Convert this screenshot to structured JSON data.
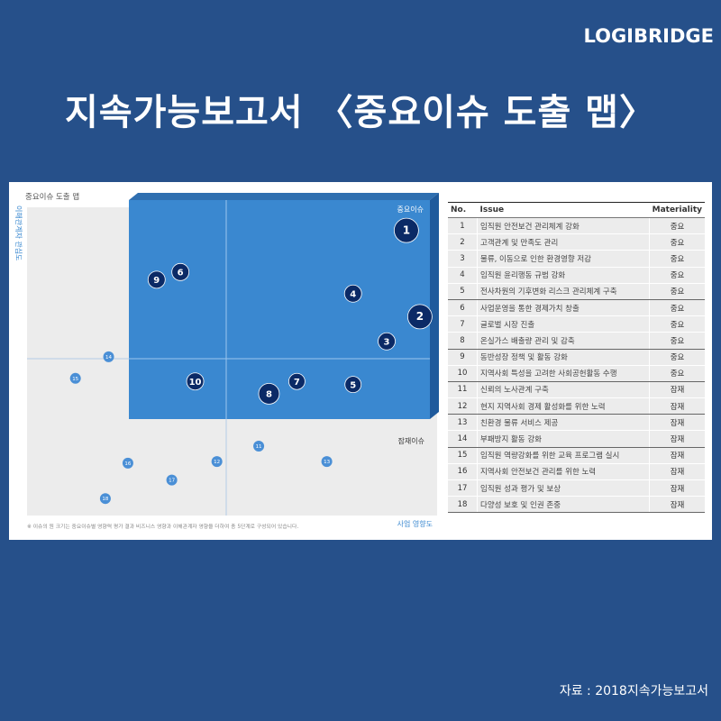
{
  "header": {
    "logo": "LOGIBRIDGE",
    "title": "지속가능보고서 〈중요이슈 도출 맵〉"
  },
  "footer": {
    "source": "자료 : 2018지속가능보고서"
  },
  "colors": {
    "background": "#26508a",
    "quadrant": "#3a88d0",
    "bubble": "#0b2a66",
    "small_bubble": "#4a8fd6"
  },
  "map": {
    "heading": "중요이슈 도출 맵",
    "y_axis_label": "이해관계자 관심도",
    "x_axis_label": "사업 영향도",
    "quadrant_label_major": "중요이슈",
    "quadrant_label_minor": "잠재이슈",
    "footnote": "※ 이슈의 원 크기는 중요이슈별 영향력 평가 결과 비즈니스 영향과 이해관계자 영향을 더하여 총 5단계로 구성되어 있습니다."
  },
  "table": {
    "headers": {
      "no": "No.",
      "issue": "Issue",
      "materiality": "Materiality"
    },
    "rows": [
      {
        "no": "1",
        "issue": "임직원 안전보건 관리체계 강화",
        "materiality": "중요"
      },
      {
        "no": "2",
        "issue": "고객관계 및 만족도 관리",
        "materiality": "중요"
      },
      {
        "no": "3",
        "issue": "물류, 이동으로 인한 환경영향 저감",
        "materiality": "중요"
      },
      {
        "no": "4",
        "issue": "임직원 윤리행동 규범 강화",
        "materiality": "중요"
      },
      {
        "no": "5",
        "issue": "전사차원의 기후변화 리스크 관리체계 구축",
        "materiality": "중요"
      },
      {
        "no": "6",
        "issue": "사업운영을 통한 경제가치 창출",
        "materiality": "중요"
      },
      {
        "no": "7",
        "issue": "글로벌 시장 진출",
        "materiality": "중요"
      },
      {
        "no": "8",
        "issue": "온실가스 배출량 관리 및 감축",
        "materiality": "중요"
      },
      {
        "no": "9",
        "issue": "동반성장 정책 및 활동 강화",
        "materiality": "중요"
      },
      {
        "no": "10",
        "issue": "지역사회 특성을 고려한 사회공헌활동 수행",
        "materiality": "중요"
      },
      {
        "no": "11",
        "issue": "신뢰의 노사관계 구축",
        "materiality": "잠재"
      },
      {
        "no": "12",
        "issue": "현지 지역사회 경제 활성화를 위한 노력",
        "materiality": "잠재"
      },
      {
        "no": "13",
        "issue": "친환경 물류 서비스 제공",
        "materiality": "잠재"
      },
      {
        "no": "14",
        "issue": "부패방지 활동 강화",
        "materiality": "잠재"
      },
      {
        "no": "15",
        "issue": "임직원 역량강화를 위한 교육 프로그램 실시",
        "materiality": "잠재"
      },
      {
        "no": "16",
        "issue": "지역사회 안전보건 관리를 위한 노력",
        "materiality": "잠재"
      },
      {
        "no": "17",
        "issue": "임직원 성과 평가 및 보상",
        "materiality": "잠재"
      },
      {
        "no": "18",
        "issue": "다양성 보호 및 인권 존중",
        "materiality": "잠재"
      }
    ]
  },
  "chart_data": {
    "type": "scatter",
    "xlabel": "사업 영향도",
    "ylabel": "이해관계자 관심도",
    "points": [
      {
        "label": "1",
        "x": 0.925,
        "y": 0.925,
        "group": "중요이슈"
      },
      {
        "label": "2",
        "x": 0.958,
        "y": 0.645,
        "group": "중요이슈"
      },
      {
        "label": "3",
        "x": 0.877,
        "y": 0.565,
        "group": "중요이슈"
      },
      {
        "label": "4",
        "x": 0.795,
        "y": 0.72,
        "group": "중요이슈"
      },
      {
        "label": "5",
        "x": 0.795,
        "y": 0.425,
        "group": "중요이슈"
      },
      {
        "label": "6",
        "x": 0.374,
        "y": 0.79,
        "group": "중요이슈"
      },
      {
        "label": "7",
        "x": 0.658,
        "y": 0.435,
        "group": "중요이슈"
      },
      {
        "label": "8",
        "x": 0.59,
        "y": 0.395,
        "group": "중요이슈"
      },
      {
        "label": "9",
        "x": 0.316,
        "y": 0.765,
        "group": "중요이슈"
      },
      {
        "label": "10",
        "x": 0.41,
        "y": 0.435,
        "group": "중요이슈"
      },
      {
        "label": "11",
        "x": 0.565,
        "y": 0.225,
        "group": "잠재이슈"
      },
      {
        "label": "12",
        "x": 0.463,
        "y": 0.175,
        "group": "잠재이슈"
      },
      {
        "label": "13",
        "x": 0.731,
        "y": 0.175,
        "group": "잠재이슈"
      },
      {
        "label": "14",
        "x": 0.199,
        "y": 0.515,
        "group": "잠재이슈"
      },
      {
        "label": "15",
        "x": 0.118,
        "y": 0.445,
        "group": "잠재이슈"
      },
      {
        "label": "16",
        "x": 0.246,
        "y": 0.17,
        "group": "잠재이슈"
      },
      {
        "label": "17",
        "x": 0.353,
        "y": 0.115,
        "group": "잠재이슈"
      },
      {
        "label": "18",
        "x": 0.191,
        "y": 0.055,
        "group": "잠재이슈"
      }
    ]
  }
}
